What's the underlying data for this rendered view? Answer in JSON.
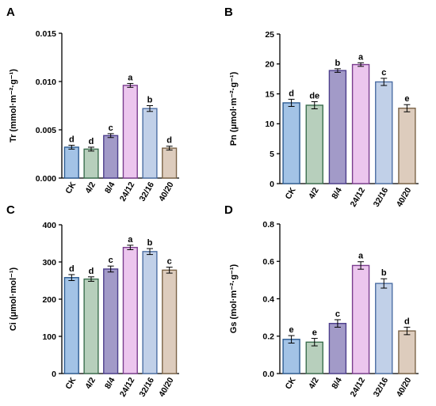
{
  "colors": {
    "fills": [
      "#a3c3e6",
      "#b7cfbc",
      "#a29ac8",
      "#ecc6ee",
      "#c1d0e8",
      "#ddccbd"
    ],
    "strokes": [
      "#2d5c92",
      "#3b6e4e",
      "#4d3e8c",
      "#7a3d8e",
      "#4c6ea4",
      "#7b6448"
    ]
  },
  "chart_data": [
    {
      "panel": "A",
      "type": "bar",
      "ylabel": "Tr (mmol·m⁻²·g⁻¹)",
      "ylim": [
        0,
        0.015
      ],
      "yticks": [
        "0.000",
        "0.005",
        "0.010",
        "0.015"
      ],
      "categories": [
        "CK",
        "4/2",
        "8/4",
        "24/12",
        "32/16",
        "40/20"
      ],
      "values": [
        0.0032,
        0.003,
        0.0044,
        0.0096,
        0.0072,
        0.0031
      ],
      "errors": [
        0.0002,
        0.0002,
        0.0002,
        0.0002,
        0.0003,
        0.0002
      ],
      "letters": [
        "d",
        "d",
        "c",
        "a",
        "b",
        "d"
      ]
    },
    {
      "panel": "B",
      "type": "bar",
      "ylabel": "Pn (μmol·m⁻²·g⁻¹)",
      "ylim": [
        0,
        25
      ],
      "yticks": [
        "0",
        "5",
        "10",
        "15",
        "20",
        "25"
      ],
      "categories": [
        "CK",
        "4/2",
        "8/4",
        "24/12",
        "32/16",
        "40/20"
      ],
      "values": [
        13.5,
        13.1,
        18.9,
        19.9,
        17.0,
        12.6
      ],
      "errors": [
        0.6,
        0.6,
        0.3,
        0.3,
        0.6,
        0.6
      ],
      "letters": [
        "d",
        "de",
        "b",
        "a",
        "c",
        "e"
      ]
    },
    {
      "panel": "C",
      "type": "bar",
      "ylabel": "Ci (μmol·mol⁻¹)",
      "ylim": [
        0,
        400
      ],
      "yticks": [
        "0",
        "100",
        "200",
        "300",
        "400"
      ],
      "categories": [
        "CK",
        "4/2",
        "8/4",
        "24/12",
        "32/16",
        "40/20"
      ],
      "values": [
        258,
        254,
        281,
        339,
        328,
        278
      ],
      "errors": [
        8,
        6,
        8,
        6,
        8,
        8
      ],
      "letters": [
        "d",
        "d",
        "c",
        "a",
        "b",
        "c"
      ]
    },
    {
      "panel": "D",
      "type": "bar",
      "ylabel": "Gs (mol·m⁻²·g⁻¹)",
      "ylim": [
        0,
        0.8
      ],
      "yticks": [
        "0.0",
        "0.2",
        "0.4",
        "0.6",
        "0.8"
      ],
      "categories": [
        "CK",
        "4/2",
        "8/4",
        "24/12",
        "32/16",
        "40/20"
      ],
      "values": [
        0.183,
        0.168,
        0.268,
        0.578,
        0.482,
        0.228
      ],
      "errors": [
        0.02,
        0.02,
        0.02,
        0.02,
        0.025,
        0.02
      ],
      "letters": [
        "e",
        "e",
        "c",
        "a",
        "b",
        "d"
      ]
    }
  ]
}
